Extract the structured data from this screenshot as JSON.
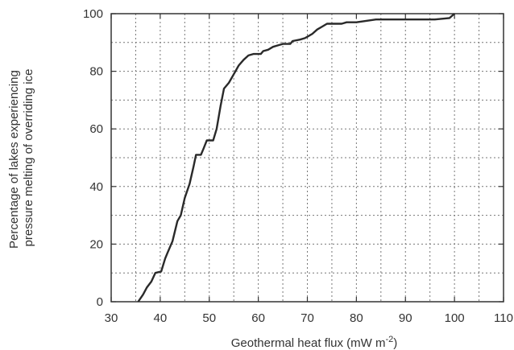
{
  "chart_data": {
    "type": "line",
    "title": "",
    "xlabel_main": "Geothermal heat flux (mW m",
    "xlabel_sup": "-2",
    "xlabel_close": ")",
    "ylabel_line1": "Percentage of lakes experiencing",
    "ylabel_line2": "pressure melting of overriding ice",
    "xlim": [
      30,
      110
    ],
    "ylim": [
      0,
      100
    ],
    "xticks": [
      "30",
      "40",
      "50",
      "60",
      "70",
      "80",
      "90",
      "100",
      "110"
    ],
    "yticks": [
      "0",
      "20",
      "40",
      "60",
      "80",
      "100"
    ],
    "grid": true,
    "series": [
      {
        "x": [
          35.5,
          36.5,
          37.3,
          38.2,
          39.0,
          40.2,
          41.0,
          41.5,
          42.5,
          43.5,
          44.2,
          45.0,
          46.0,
          46.8,
          47.3,
          48.3,
          48.8,
          49.5,
          50.8,
          51.5,
          52.3,
          53.0,
          54.0,
          55.0,
          56.0,
          57.0,
          58.0,
          59.0,
          60.5,
          61.0,
          62.0,
          63.0,
          64.0,
          65.0,
          66.5,
          67.0,
          68.5,
          69.5,
          71.0,
          72.0,
          73.0,
          74.0,
          75.5,
          77.0,
          78.0,
          80.0,
          82.0,
          84.0,
          85.0,
          88.0,
          92.0,
          96.0,
          99.0,
          100.0
        ],
        "y": [
          0,
          2.5,
          5,
          7,
          10,
          10.5,
          15,
          17,
          21,
          28,
          30,
          36,
          41,
          47,
          51,
          51,
          53,
          56,
          56,
          60,
          68,
          74,
          76,
          79,
          82,
          84,
          85.5,
          86,
          86,
          87,
          87.5,
          88.5,
          89,
          89.5,
          89.5,
          90.5,
          91,
          91.5,
          93,
          94.5,
          95.5,
          96.5,
          96.5,
          96.5,
          97,
          97,
          97.5,
          98,
          98,
          98,
          98,
          98,
          98.5,
          100
        ]
      }
    ]
  }
}
